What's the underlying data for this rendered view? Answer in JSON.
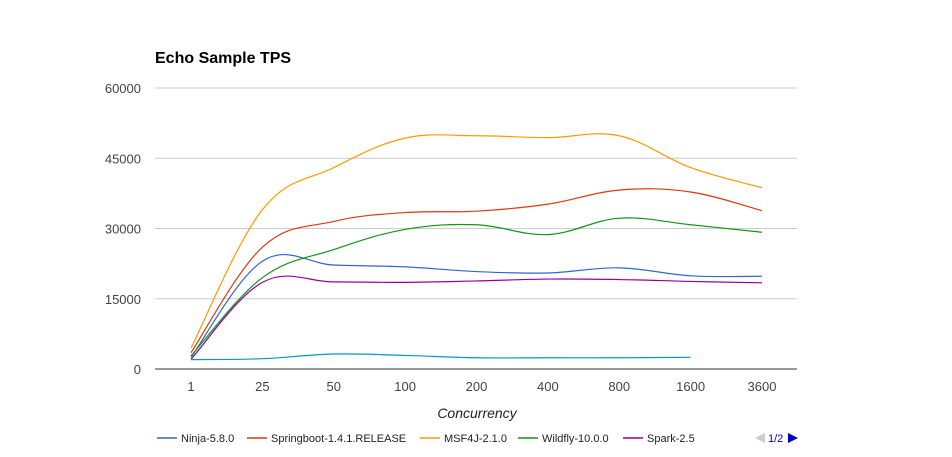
{
  "chart_data": {
    "type": "line",
    "title": "Echo Sample TPS",
    "xlabel": "Concurrency",
    "ylabel": "",
    "categories": [
      "1",
      "25",
      "50",
      "100",
      "200",
      "400",
      "800",
      "1600",
      "3600"
    ],
    "yticks": [
      "0",
      "15000",
      "30000",
      "45000",
      "60000"
    ],
    "ylim": [
      0,
      60000
    ],
    "grid": true,
    "legend_position": "bottom",
    "legend_page": "1/2",
    "series": [
      {
        "name": "Ninja-5.8.0",
        "color": "#3366cc",
        "values": [
          2500,
          23000,
          22200,
          21800,
          20800,
          20500,
          21600,
          19900,
          19800
        ]
      },
      {
        "name": "Springboot-1.4.1.RELEASE",
        "color": "#dc3912",
        "values": [
          3500,
          26000,
          31500,
          33400,
          33700,
          35200,
          38200,
          37800,
          33800
        ]
      },
      {
        "name": "MSF4J-2.1.0",
        "color": "#ff9900",
        "values": [
          4500,
          34000,
          43000,
          49300,
          49800,
          49400,
          49800,
          43000,
          38700
        ]
      },
      {
        "name": "Wildfly-10.0.0",
        "color": "#109618",
        "values": [
          2800,
          19500,
          25500,
          29800,
          30800,
          28700,
          32200,
          30800,
          29200
        ]
      },
      {
        "name": "Spark-2.5",
        "color": "#990099",
        "values": [
          2100,
          18500,
          18600,
          18500,
          18800,
          19200,
          19100,
          18700,
          18400
        ]
      },
      {
        "name": "",
        "color": "#0099c6",
        "values": [
          2000,
          2200,
          3200,
          2900,
          2400,
          2400,
          2400,
          2500,
          null
        ]
      }
    ]
  }
}
